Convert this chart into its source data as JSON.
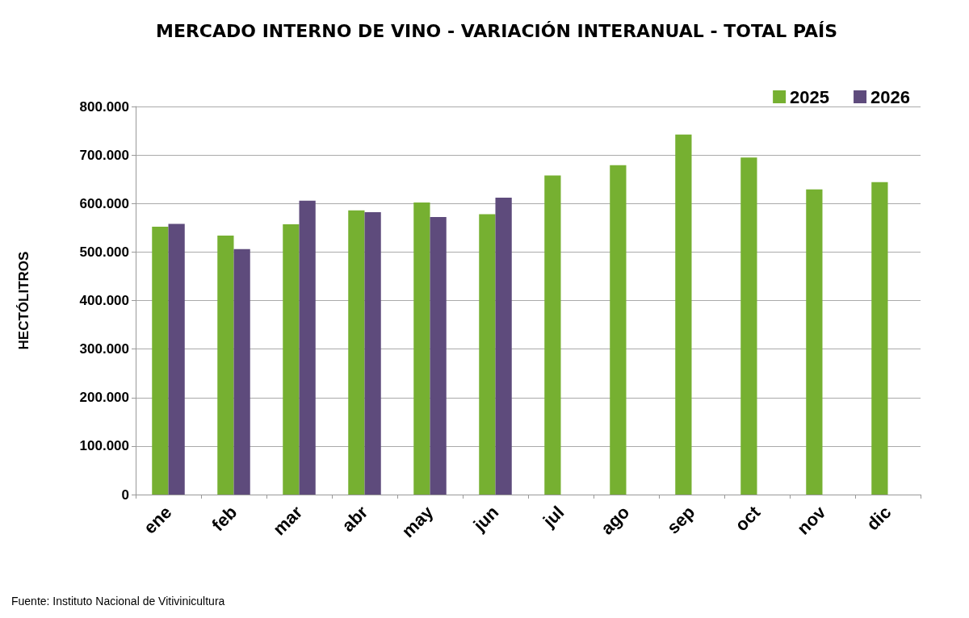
{
  "chart_data": {
    "type": "bar",
    "title": "MERCADO INTERNO DE VINO - VARIACIÓN INTERANUAL - TOTAL PAÍS",
    "ylabel": "HECTÓLITROS",
    "annotations": [
      "Fuente: Instituto Nacional de Vitivinicultura"
    ],
    "categories": [
      "ene",
      "feb",
      "mar",
      "abr",
      "may",
      "jun",
      "jul",
      "ago",
      "sep",
      "oct",
      "nov",
      "dic"
    ],
    "series": [
      {
        "name": "2025",
        "color": "#76b031",
        "values": [
          552000,
          534000,
          557000,
          586000,
          602000,
          578000,
          658000,
          679000,
          742000,
          695000,
          629000,
          644000
        ]
      },
      {
        "name": "2026",
        "color": "#5e4b7c",
        "values": [
          558000,
          506000,
          606000,
          582000,
          572000,
          612000,
          null,
          null,
          null,
          null,
          null,
          null
        ]
      }
    ],
    "ylim": [
      0,
      800000
    ],
    "yticks": [
      {
        "value": 0,
        "label": "0"
      },
      {
        "value": 100000,
        "label": "100.000"
      },
      {
        "value": 200000,
        "label": "200.000"
      },
      {
        "value": 300000,
        "label": "300.000"
      },
      {
        "value": 400000,
        "label": "400.000"
      },
      {
        "value": 500000,
        "label": "500.000"
      },
      {
        "value": 600000,
        "label": "600.000"
      },
      {
        "value": 700000,
        "label": "700.000"
      },
      {
        "value": 800000,
        "label": "800.000"
      }
    ],
    "grid": "y",
    "legend": "top right"
  }
}
